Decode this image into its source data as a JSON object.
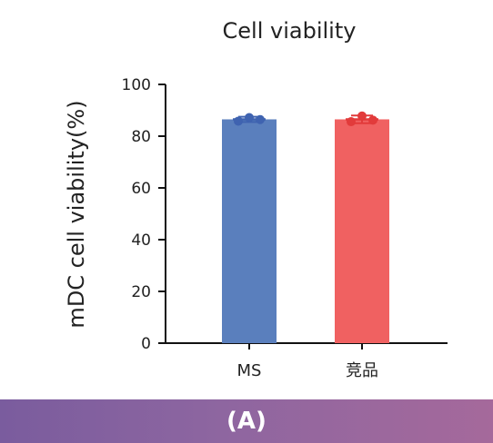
{
  "chart_data": {
    "type": "bar",
    "title": "Cell viability",
    "xlabel": "",
    "ylabel": "mDC cell viability(%)",
    "ylim": [
      0,
      100
    ],
    "yticks": [
      0,
      20,
      40,
      60,
      80,
      100
    ],
    "grid": false,
    "categories": [
      "MS",
      "竞品"
    ],
    "values": [
      86.5,
      86.5
    ],
    "error": [
      1.0,
      1.5
    ],
    "points": [
      [
        85.8,
        87.2,
        86.4
      ],
      [
        85.6,
        87.8,
        86.2
      ]
    ],
    "colors": [
      "#5a7fbd",
      "#f06161"
    ],
    "point_colors": [
      "#3f63b0",
      "#e23b3b"
    ]
  },
  "footer": {
    "label": "(A)"
  }
}
